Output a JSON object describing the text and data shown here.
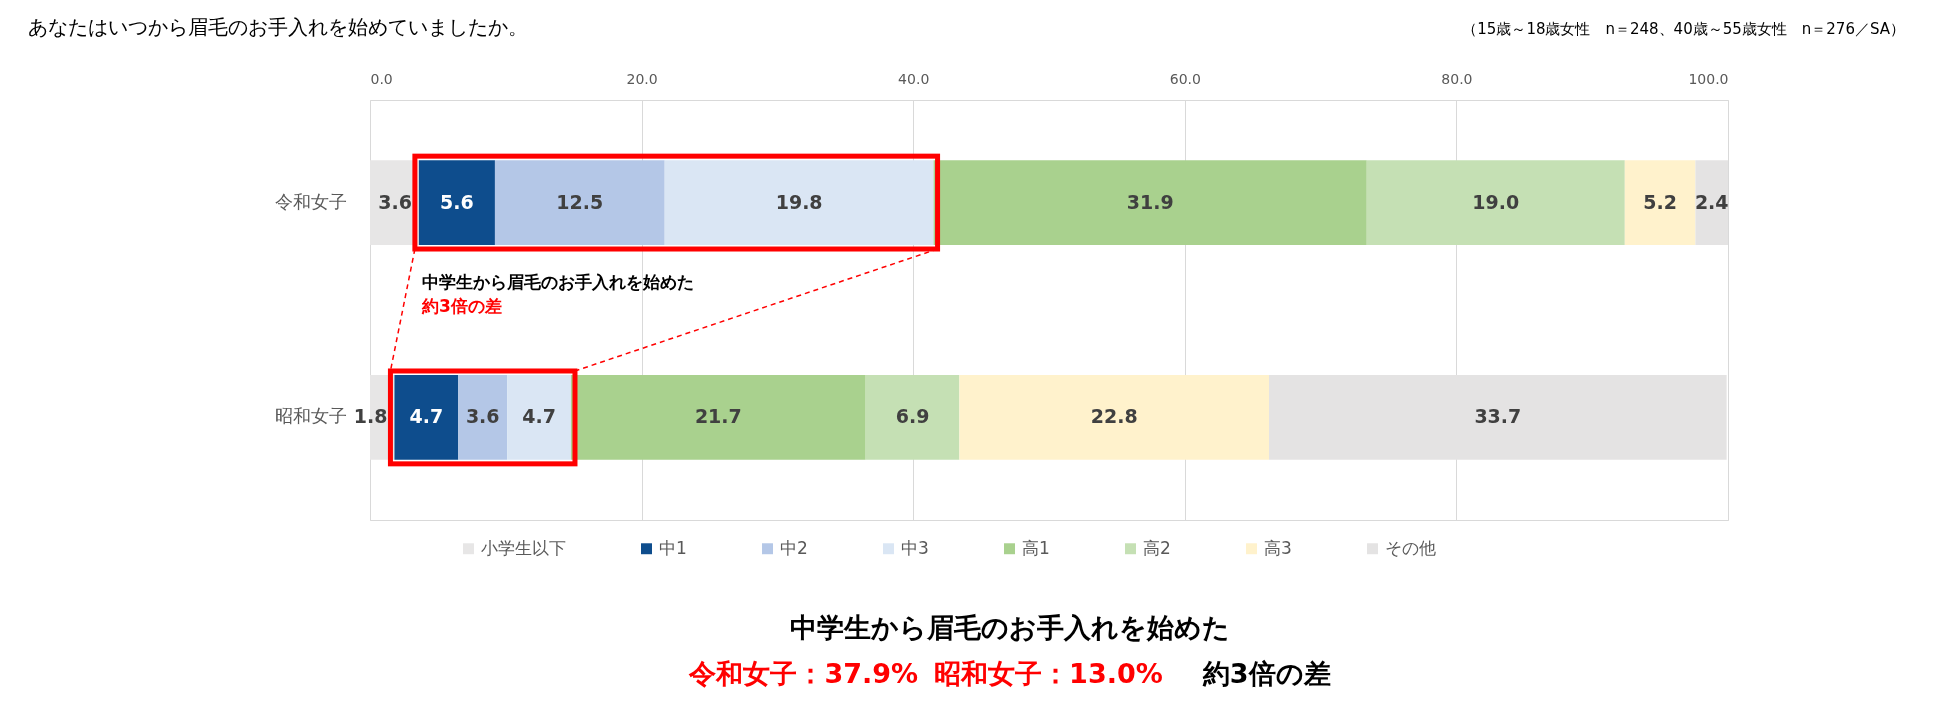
{
  "chart_data": {
    "type": "bar",
    "orientation": "horizontal",
    "stacked": true,
    "title": "あなたはいつから眉毛のお手入れを始めていましたか。",
    "subtitle": "（15歳～18歳女性　n＝248、40歳～55歳女性　n＝276／SA）",
    "annotations": [
      "中学生から眉毛のお手入れを始めた",
      "約3倍の差",
      "中学生から眉毛のお手入れを始めた",
      "令和女子：37.9%",
      "昭和女子：13.0%",
      "約3倍の差"
    ],
    "categories": [
      "令和女子",
      "昭和女子"
    ],
    "series": [
      {
        "name": "小学生以下",
        "color": "#e7e6e6",
        "values": [
          3.6,
          1.8
        ],
        "value_labels": [
          "3.6",
          "1.8"
        ]
      },
      {
        "name": "中1",
        "color": "#0e4d8d",
        "values": [
          5.6,
          4.7
        ],
        "value_labels": [
          "5.6",
          "4.7"
        ]
      },
      {
        "name": "中2",
        "color": "#b4c7e7",
        "values": [
          12.5,
          3.6
        ],
        "value_labels": [
          "12.5",
          "3.6"
        ]
      },
      {
        "name": "中3",
        "color": "#dae6f4",
        "values": [
          19.8,
          4.7
        ],
        "value_labels": [
          "19.8",
          "4.7"
        ]
      },
      {
        "name": "高1",
        "color": "#a9d18e",
        "values": [
          31.9,
          21.7
        ],
        "value_labels": [
          "31.9",
          "21.7"
        ]
      },
      {
        "name": "高2",
        "color": "#c5e0b4",
        "values": [
          19.0,
          6.9
        ],
        "value_labels": [
          "19.0",
          "6.9"
        ]
      },
      {
        "name": "高3",
        "color": "#fff2cc",
        "values": [
          5.2,
          22.8
        ],
        "value_labels": [
          "5.2",
          "22.8"
        ]
      },
      {
        "name": "その他",
        "color": "#e4e3e3",
        "values": [
          2.4,
          33.7
        ],
        "value_labels": [
          "2.4",
          "33.7"
        ]
      }
    ],
    "xlim": [
      0,
      100
    ],
    "xticks": [
      {
        "value": 0,
        "label": "0.0"
      },
      {
        "value": 20,
        "label": "20.0"
      },
      {
        "value": 40,
        "label": "40.0"
      },
      {
        "value": 60,
        "label": "60.0"
      },
      {
        "value": 80,
        "label": "80.0"
      },
      {
        "value": 100,
        "label": "100.0"
      }
    ],
    "grid": "x",
    "legend": "bottom"
  }
}
